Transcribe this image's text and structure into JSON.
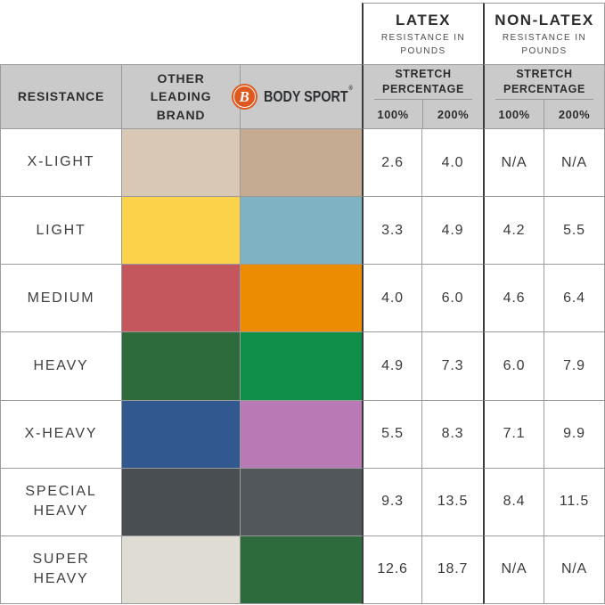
{
  "table": {
    "groups": {
      "latex": {
        "title": "LATEX",
        "subtitle": "RESISTANCE IN POUNDS",
        "stretch_label": "STRETCH PERCENTAGE",
        "col_100": "100%",
        "col_200": "200%"
      },
      "nonlatex": {
        "title": "NON-LATEX",
        "subtitle": "RESISTANCE IN POUNDS",
        "stretch_label": "STRETCH PERCENTAGE",
        "col_100": "100%",
        "col_200": "200%"
      }
    },
    "headers": {
      "resistance": "RESISTANCE",
      "other_brand": "OTHER LEADING BRAND"
    },
    "brand": {
      "logo_letter": "B",
      "name": "BODY SPORT",
      "registered": "®",
      "logo_color": "#e0581e",
      "text_color": "#2e3133"
    },
    "rows": [
      {
        "label": "X-LIGHT",
        "other_color": "#d9c8b5",
        "bodysport_color": "#c5ab92",
        "latex_100": "2.6",
        "latex_200": "4.0",
        "nonlatex_100": "N/A",
        "nonlatex_200": "N/A"
      },
      {
        "label": "LIGHT",
        "other_color": "#fbd34b",
        "bodysport_color": "#7fb2c3",
        "latex_100": "3.3",
        "latex_200": "4.9",
        "nonlatex_100": "4.2",
        "nonlatex_200": "5.5"
      },
      {
        "label": "MEDIUM",
        "other_color": "#c4575d",
        "bodysport_color": "#ec8c00",
        "latex_100": "4.0",
        "latex_200": "6.0",
        "nonlatex_100": "4.6",
        "nonlatex_200": "6.4"
      },
      {
        "label": "HEAVY",
        "other_color": "#2d6b3d",
        "bodysport_color": "#0e9049",
        "latex_100": "4.9",
        "latex_200": "7.3",
        "nonlatex_100": "6.0",
        "nonlatex_200": "7.9"
      },
      {
        "label": "X-HEAVY",
        "other_color": "#31588f",
        "bodysport_color": "#b879b5",
        "latex_100": "5.5",
        "latex_200": "8.3",
        "nonlatex_100": "7.1",
        "nonlatex_200": "9.9"
      },
      {
        "label": "SPECIAL HEAVY",
        "other_color": "#494e52",
        "bodysport_color": "#52575b",
        "latex_100": "9.3",
        "latex_200": "13.5",
        "nonlatex_100": "8.4",
        "nonlatex_200": "11.5"
      },
      {
        "label": "SUPER HEAVY",
        "other_color": "#dfdcd3",
        "bodysport_color": "#2d6b3d",
        "latex_100": "12.6",
        "latex_200": "18.7",
        "nonlatex_100": "N/A",
        "nonlatex_200": "N/A"
      }
    ]
  },
  "chart_data": {
    "type": "table",
    "title": "Resistance band comparison: Body Sport vs Other Leading Brand",
    "row_header": "RESISTANCE",
    "rows": [
      "X-LIGHT",
      "LIGHT",
      "MEDIUM",
      "HEAVY",
      "X-HEAVY",
      "SPECIAL HEAVY",
      "SUPER HEAVY"
    ],
    "columns": [
      "LATEX 100%",
      "LATEX 200%",
      "NON-LATEX 100%",
      "NON-LATEX 200%"
    ],
    "units": "pounds of resistance at stretch percentage",
    "values": [
      [
        2.6,
        4.0,
        null,
        null
      ],
      [
        3.3,
        4.9,
        4.2,
        5.5
      ],
      [
        4.0,
        6.0,
        4.6,
        6.4
      ],
      [
        4.9,
        7.3,
        6.0,
        7.9
      ],
      [
        5.5,
        8.3,
        7.1,
        9.9
      ],
      [
        9.3,
        13.5,
        8.4,
        11.5
      ],
      [
        12.6,
        18.7,
        null,
        null
      ]
    ],
    "na_display": "N/A",
    "other_brand_colors": [
      "#d9c8b5",
      "#fbd34b",
      "#c4575d",
      "#2d6b3d",
      "#31588f",
      "#494e52",
      "#dfdcd3"
    ],
    "bodysport_colors": [
      "#c5ab92",
      "#7fb2c3",
      "#ec8c00",
      "#0e9049",
      "#b879b5",
      "#52575b",
      "#2d6b3d"
    ]
  }
}
